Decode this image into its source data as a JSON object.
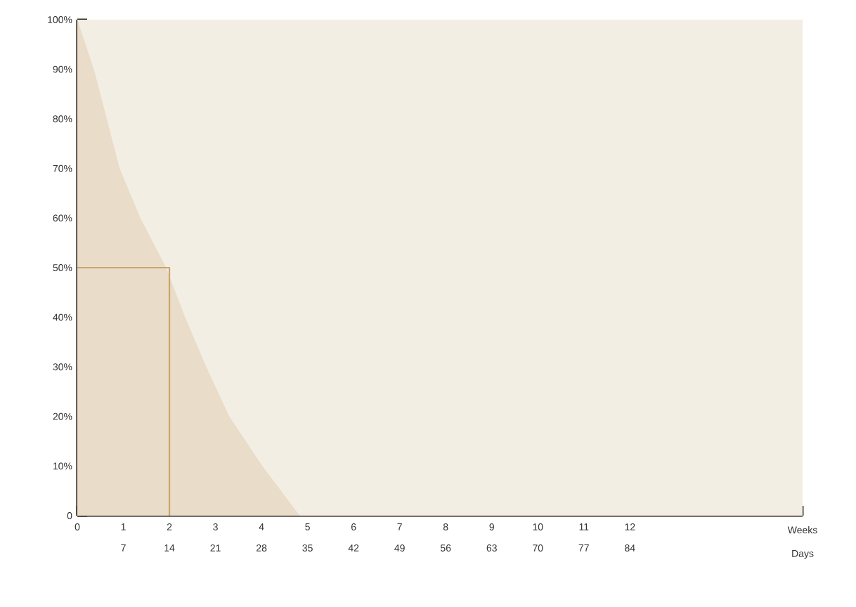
{
  "chart_data": {
    "type": "area",
    "xlabel": "Weeks",
    "x2label": "Days",
    "xlim": [
      0,
      15.75
    ],
    "ylim": [
      0,
      100
    ],
    "xticks": [
      0,
      1,
      2,
      3,
      4,
      5,
      6,
      7,
      8,
      9,
      10,
      11,
      12,
      {
        "value": 15.75,
        "label": null
      }
    ],
    "x2lim": [
      0,
      110.25
    ],
    "x2ticks": [
      7,
      14,
      21,
      28,
      35,
      42,
      49,
      56,
      63,
      70,
      77,
      84
    ],
    "yticks": [
      0,
      {
        "value": 10,
        "label": "10%"
      },
      {
        "value": 20,
        "label": "20%"
      },
      {
        "value": 30,
        "label": "30%"
      },
      {
        "value": 40,
        "label": "40%"
      },
      {
        "value": 50,
        "label": "50%"
      },
      {
        "value": 60,
        "label": "60%"
      },
      {
        "value": 70,
        "label": "70%"
      },
      {
        "value": 80,
        "label": "80%"
      },
      {
        "value": 90,
        "label": "90%"
      },
      {
        "value": 100,
        "label": "100%"
      }
    ],
    "series": [
      {
        "color": "#e9dcc8",
        "x": [
          0,
          0.36,
          0.64,
          0.92,
          1.37,
          1.93,
          2.34,
          2.8,
          3.3,
          4.02,
          4.83
        ],
        "values": [
          100,
          90,
          80,
          70,
          60,
          50,
          40,
          30,
          20,
          10,
          0
        ]
      },
      {
        "type": "line",
        "color": "#c9a66b",
        "x": [
          0,
          2,
          2
        ],
        "values": [
          50,
          50,
          0
        ]
      }
    ]
  }
}
